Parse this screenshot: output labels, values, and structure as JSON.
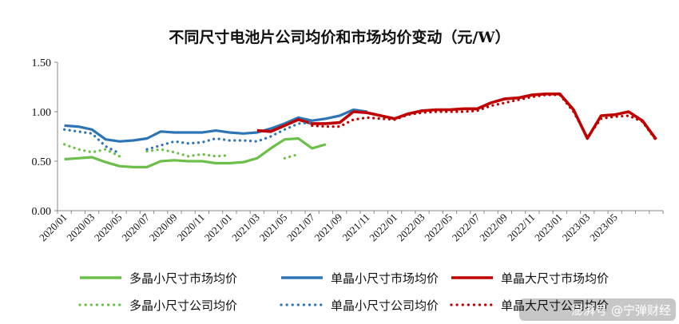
{
  "chart_data": {
    "type": "line",
    "title": "不同尺寸电池片公司均价和市场均价变动（元/W）",
    "ylim": [
      0,
      1.5
    ],
    "yticks": [
      "0.00",
      "0.50",
      "1.00",
      "1.50"
    ],
    "x_labels": [
      "2020/01",
      "2020/03",
      "2020/05",
      "2020/07",
      "2020/09",
      "2020/11",
      "2021/01",
      "2021/03",
      "2021/05",
      "2021/07",
      "2021/09",
      "2021/11",
      "2022/01",
      "2022/03",
      "2022/05",
      "2022/07",
      "2022/09",
      "2022/11",
      "2023/01",
      "2023/03",
      "2023/05"
    ],
    "grid": false,
    "legend_position": "bottom",
    "series": [
      {
        "name": "多晶小尺寸市场均价",
        "style": "solid",
        "color": "#6cc04a",
        "points": [
          [
            0,
            0.52
          ],
          [
            1,
            0.53
          ],
          [
            2,
            0.54
          ],
          [
            3,
            0.49
          ],
          [
            4,
            0.45
          ],
          [
            5,
            0.44
          ],
          [
            6,
            0.44
          ],
          [
            7,
            0.5
          ],
          [
            8,
            0.51
          ],
          [
            9,
            0.5
          ],
          [
            10,
            0.5
          ],
          [
            11,
            0.48
          ],
          [
            12,
            0.48
          ],
          [
            13,
            0.49
          ],
          [
            14,
            0.53
          ],
          [
            15,
            0.63
          ],
          [
            16,
            0.72
          ],
          [
            17,
            0.73
          ],
          [
            18,
            0.63
          ],
          [
            19,
            0.67
          ]
        ]
      },
      {
        "name": "单晶小尺寸市场均价",
        "style": "solid",
        "color": "#2e75b6",
        "points": [
          [
            0,
            0.86
          ],
          [
            1,
            0.85
          ],
          [
            2,
            0.82
          ],
          [
            3,
            0.72
          ],
          [
            4,
            0.7
          ],
          [
            5,
            0.71
          ],
          [
            6,
            0.73
          ],
          [
            7,
            0.8
          ],
          [
            8,
            0.79
          ],
          [
            9,
            0.79
          ],
          [
            10,
            0.79
          ],
          [
            11,
            0.81
          ],
          [
            12,
            0.79
          ],
          [
            13,
            0.78
          ],
          [
            14,
            0.79
          ],
          [
            15,
            0.83
          ],
          [
            16,
            0.88
          ],
          [
            17,
            0.94
          ],
          [
            18,
            0.91
          ],
          [
            19,
            0.93
          ],
          [
            20,
            0.96
          ],
          [
            21,
            1.02
          ],
          [
            22,
            1.0
          ]
        ]
      },
      {
        "name": "单晶大尺寸市场均价",
        "style": "solid",
        "color": "#c00000",
        "points": [
          [
            14,
            0.81
          ],
          [
            15,
            0.8
          ],
          [
            16,
            0.86
          ],
          [
            17,
            0.92
          ],
          [
            18,
            0.88
          ],
          [
            19,
            0.88
          ],
          [
            20,
            0.89
          ],
          [
            21,
            1.0
          ],
          [
            22,
            0.99
          ],
          [
            23,
            0.96
          ],
          [
            24,
            0.93
          ],
          [
            25,
            0.98
          ],
          [
            26,
            1.01
          ],
          [
            27,
            1.02
          ],
          [
            28,
            1.02
          ],
          [
            29,
            1.03
          ],
          [
            30,
            1.03
          ],
          [
            31,
            1.09
          ],
          [
            32,
            1.13
          ],
          [
            33,
            1.14
          ],
          [
            34,
            1.17
          ],
          [
            35,
            1.18
          ],
          [
            36,
            1.18
          ],
          [
            37,
            1.02
          ],
          [
            38,
            0.73
          ],
          [
            39,
            0.96
          ],
          [
            40,
            0.97
          ],
          [
            41,
            1.0
          ],
          [
            42,
            0.91
          ],
          [
            43,
            0.72
          ]
        ]
      },
      {
        "name": "多晶小尺寸公司均价",
        "style": "dotted",
        "color": "#6cc04a",
        "points": [
          [
            0,
            0.67
          ],
          [
            1,
            0.62
          ],
          [
            2,
            0.59
          ],
          [
            3,
            0.62
          ],
          [
            4,
            0.55
          ],
          [
            null,
            null
          ],
          [
            6,
            0.6
          ],
          [
            7,
            0.62
          ],
          [
            8,
            0.59
          ],
          [
            9,
            0.55
          ],
          [
            10,
            0.57
          ],
          [
            11,
            0.55
          ],
          [
            12,
            0.56
          ],
          [
            null,
            null
          ],
          [
            16,
            0.53
          ],
          [
            17,
            0.57
          ]
        ]
      },
      {
        "name": "单晶小尺寸公司均价",
        "style": "dotted",
        "color": "#2e75b6",
        "points": [
          [
            0,
            0.82
          ],
          [
            1,
            0.8
          ],
          [
            2,
            0.78
          ],
          [
            3,
            0.65
          ],
          [
            4,
            0.58
          ],
          [
            null,
            null
          ],
          [
            6,
            0.62
          ],
          [
            7,
            0.66
          ],
          [
            8,
            0.7
          ],
          [
            9,
            0.68
          ],
          [
            10,
            0.69
          ],
          [
            11,
            0.73
          ],
          [
            12,
            0.71
          ],
          [
            13,
            0.71
          ],
          [
            14,
            0.7
          ],
          [
            15,
            0.75
          ],
          [
            16,
            0.82
          ],
          [
            17,
            0.88
          ],
          [
            18,
            0.89
          ]
        ]
      },
      {
        "name": "单晶大尺寸公司均价",
        "style": "dotted",
        "color": "#c00000",
        "points": [
          [
            18,
            0.86
          ],
          [
            19,
            0.85
          ],
          [
            20,
            0.85
          ],
          [
            21,
            0.92
          ],
          [
            22,
            0.94
          ],
          [
            23,
            0.93
          ],
          [
            24,
            0.92
          ],
          [
            25,
            0.97
          ],
          [
            26,
            0.99
          ],
          [
            27,
            1.0
          ],
          [
            28,
            1.0
          ],
          [
            29,
            1.0
          ],
          [
            30,
            1.01
          ],
          [
            31,
            1.06
          ],
          [
            32,
            1.09
          ],
          [
            33,
            1.12
          ],
          [
            34,
            1.15
          ],
          [
            35,
            1.17
          ],
          [
            36,
            1.17
          ],
          [
            37,
            1.0
          ],
          [
            38,
            0.74
          ],
          [
            39,
            0.93
          ],
          [
            40,
            0.95
          ],
          [
            41,
            0.96
          ],
          [
            42,
            0.9
          ],
          [
            43,
            0.71
          ]
        ]
      }
    ]
  },
  "watermark": "澎湃号 @宁弹财经"
}
